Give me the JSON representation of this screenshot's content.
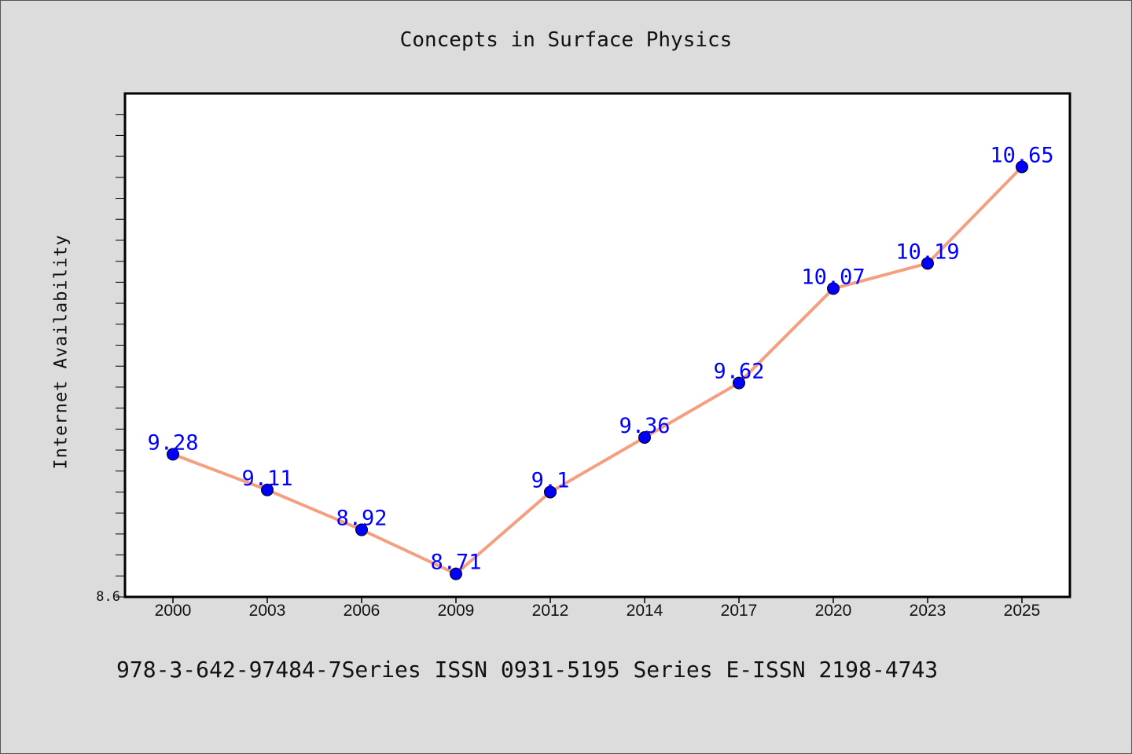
{
  "chart_data": {
    "type": "line",
    "title": "Concepts in Surface Physics",
    "xlabel": "",
    "ylabel": "Internet Availability",
    "categories": [
      "2000",
      "2003",
      "2006",
      "2009",
      "2012",
      "2014",
      "2017",
      "2020",
      "2023",
      "2025"
    ],
    "values": [
      9.28,
      9.11,
      8.92,
      8.71,
      9.1,
      9.36,
      9.62,
      10.07,
      10.19,
      10.65
    ],
    "data_labels": [
      "9.28",
      "9.11",
      "8.92",
      "8.71",
      "9.1",
      "9.36",
      "9.62",
      "10.07",
      "10.19",
      "10.65"
    ],
    "ylim": [
      8.6,
      11.0
    ],
    "y_tick_labels": [
      "8.6"
    ],
    "grid": false,
    "line_color": "#f4a080",
    "marker_color": "#0000ff",
    "label_color": "#0000ff"
  },
  "footer": {
    "text": "978-3-642-97484-7Series ISSN 0931-5195 Series E-ISSN 2198-4743"
  }
}
